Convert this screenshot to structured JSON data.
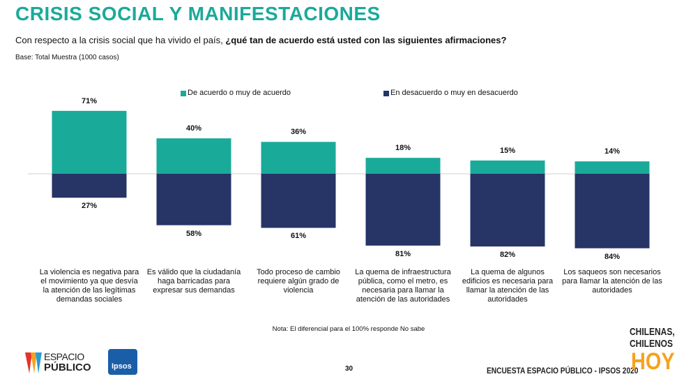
{
  "header": {
    "title": "CRISIS SOCIAL Y MANIFESTACIONES",
    "question": "Con respecto a la crisis social que ha vivido el país,",
    "question_bold": "¿qué tan de acuerdo está usted con las siguientes afirmaciones?",
    "base": "Base: Total Muestra (1000 casos)"
  },
  "chart_data": {
    "type": "bar",
    "categories": [
      "La violencia es negativa para el movimiento ya que desvía la atención de las legítimas demandas sociales",
      "Es válido que la ciudadanía haga barricadas para expresar sus demandas",
      "Todo proceso de cambio requiere algún grado de violencia",
      "La quema de infraestructura pública, como el metro, es necesaria para llamar la atención de las autoridades",
      "La quema de algunos edificios es necesaria para llamar la atención de las autoridades",
      "Los saqueos son necesarios para llamar la atención de las autoridades"
    ],
    "series": [
      {
        "name": "De acuerdo o muy de acuerdo",
        "color": "#1aaa9a",
        "values": [
          71,
          40,
          36,
          18,
          15,
          14
        ],
        "value_labels": [
          "71%",
          "40%",
          "36%",
          "18%",
          "15%",
          "14%"
        ]
      },
      {
        "name": "En desacuerdo o muy en desacuerdo",
        "color": "#263466",
        "values": [
          27,
          58,
          61,
          81,
          82,
          84
        ],
        "value_labels": [
          "27%",
          "58%",
          "61%",
          "81%",
          "82%",
          "84%"
        ]
      }
    ],
    "note": "Nota: El diferencial para el 100% responde No sabe"
  },
  "footer": {
    "page": 30,
    "survey": "ENCUESTA ESPACIO PÚBLICO - IPSOS 2020",
    "logos": [
      "ESPACIO",
      "PÚBLICO",
      "Ipsos",
      "CHILENAS,",
      "CHILENOS",
      "HOY"
    ]
  }
}
